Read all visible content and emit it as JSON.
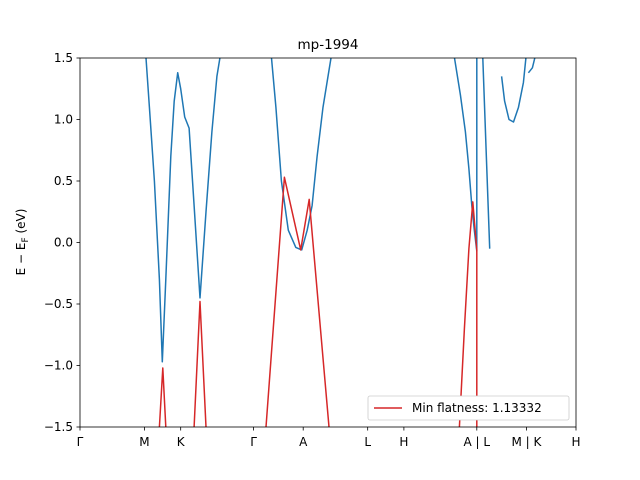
{
  "chart_data": {
    "type": "line",
    "title": "mp-1994",
    "xlabel": "",
    "ylabel": "E − E_F (eV)",
    "ylim": [
      -1.5,
      1.5
    ],
    "yticks": [
      -1.5,
      -1.0,
      -0.5,
      0.0,
      0.5,
      1.0,
      1.5
    ],
    "ytick_labels": [
      "−1.5",
      "−1.0",
      "−0.5",
      "0.0",
      "0.5",
      "1.0",
      "1.5"
    ],
    "xlim": [
      0,
      100
    ],
    "xticks": [
      {
        "label": "Γ",
        "x": 0
      },
      {
        "label": "M",
        "x": 13
      },
      {
        "label": "K",
        "x": 20.3
      },
      {
        "label": "Γ",
        "x": 35
      },
      {
        "label": "A",
        "x": 45
      },
      {
        "label": "L",
        "x": 58
      },
      {
        "label": "H",
        "x": 65.3
      },
      {
        "label": "A | L",
        "x": 80
      },
      {
        "label": "M | K",
        "x": 90
      },
      {
        "label": "H",
        "x": 100
      }
    ],
    "grid": false,
    "legend": {
      "position": "bottom-right",
      "entries": [
        {
          "label": "Min flatness: 1.13332",
          "color": "#d62728"
        }
      ]
    },
    "colors": {
      "conduction": "#1f77b4",
      "valence": "#d62728"
    },
    "series": [
      {
        "color": "#1f77b4",
        "points": [
          [
            13.3,
            1.5
          ],
          [
            14.0,
            1.1
          ],
          [
            15.0,
            0.5
          ],
          [
            16.0,
            -0.3
          ],
          [
            16.6,
            -0.97
          ],
          [
            17.3,
            -0.3
          ],
          [
            18.3,
            0.7
          ],
          [
            19.0,
            1.15
          ],
          [
            19.7,
            1.38
          ],
          [
            20.3,
            1.25
          ],
          [
            21.1,
            1.02
          ],
          [
            22.0,
            0.93
          ],
          [
            23.0,
            0.3
          ],
          [
            24.2,
            -0.45
          ],
          [
            25.4,
            0.25
          ],
          [
            26.6,
            0.9
          ],
          [
            27.6,
            1.35
          ],
          [
            28.2,
            1.5
          ]
        ]
      },
      {
        "color": "#1f77b4",
        "points": [
          [
            38.6,
            1.5
          ],
          [
            39.5,
            1.1
          ],
          [
            40.6,
            0.5
          ],
          [
            42.0,
            0.1
          ],
          [
            43.5,
            -0.04
          ],
          [
            44.7,
            -0.06
          ],
          [
            45.8,
            0.1
          ],
          [
            46.8,
            0.3
          ],
          [
            47.8,
            0.7
          ],
          [
            49.0,
            1.1
          ],
          [
            50.2,
            1.4
          ],
          [
            50.6,
            1.5
          ]
        ]
      },
      {
        "color": "#1f77b4",
        "points": [
          [
            75.5,
            1.5
          ],
          [
            76.7,
            1.2
          ],
          [
            77.7,
            0.9
          ],
          [
            78.4,
            0.6
          ],
          [
            79.0,
            0.3
          ],
          [
            79.5,
            0.1
          ],
          [
            80.0,
            -0.07
          ],
          [
            80.0,
            1.5
          ]
        ]
      },
      {
        "color": "#1f77b4",
        "points": [
          [
            81.2,
            1.5
          ],
          [
            82.0,
            0.62
          ],
          [
            82.6,
            -0.05
          ]
        ]
      },
      {
        "color": "#1f77b4",
        "points": [
          [
            85.0,
            1.35
          ],
          [
            85.6,
            1.15
          ],
          [
            86.5,
            1.0
          ],
          [
            87.4,
            0.98
          ],
          [
            88.4,
            1.1
          ],
          [
            89.4,
            1.3
          ],
          [
            89.9,
            1.5
          ]
        ]
      },
      {
        "color": "#1f77b4",
        "points": [
          [
            90.4,
            1.38
          ],
          [
            91.2,
            1.42
          ],
          [
            91.7,
            1.5
          ]
        ]
      },
      {
        "color": "#d62728",
        "points": [
          [
            16.0,
            -1.5
          ],
          [
            16.7,
            -1.02
          ],
          [
            17.3,
            -1.5
          ]
        ]
      },
      {
        "color": "#d62728",
        "points": [
          [
            23.0,
            -1.5
          ],
          [
            24.2,
            -0.48
          ],
          [
            25.4,
            -1.5
          ]
        ]
      },
      {
        "color": "#d62728",
        "points": [
          [
            37.5,
            -1.5
          ],
          [
            41.2,
            0.53
          ],
          [
            44.5,
            -0.06
          ],
          [
            46.2,
            0.35
          ],
          [
            50.2,
            -1.5
          ]
        ]
      },
      {
        "color": "#d62728",
        "points": [
          [
            76.5,
            -1.5
          ],
          [
            77.5,
            -0.7
          ],
          [
            78.4,
            -0.05
          ],
          [
            79.2,
            0.33
          ],
          [
            80.0,
            -0.06
          ],
          [
            80.0,
            -1.5
          ]
        ]
      }
    ]
  }
}
